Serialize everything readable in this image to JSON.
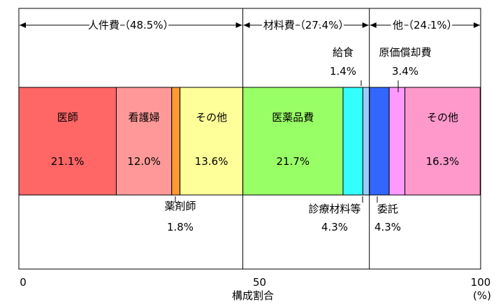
{
  "chart_data": {
    "type": "bar",
    "orientation": "horizontal-stacked",
    "xlabel": "構成割合",
    "x_unit": "(%)",
    "xlim": [
      0,
      100
    ],
    "x_ticks": [
      "0",
      "50",
      "100"
    ],
    "groups": [
      {
        "label": "人件費（48.5%）",
        "start": 0,
        "end": 48.5
      },
      {
        "label": "材料費（27.4%）",
        "start": 48.5,
        "end": 75.9
      },
      {
        "label": "他（24.1%）",
        "start": 75.9,
        "end": 100
      }
    ],
    "segments": [
      {
        "name": "医師",
        "value_label": "21.1%",
        "value": 21.1,
        "color": "#ff6666"
      },
      {
        "name": "看護婦",
        "value_label": "12.0%",
        "value": 12.0,
        "color": "#ff9999"
      },
      {
        "name": "薬剤師",
        "value_label": "1.8%",
        "value": 1.8,
        "color": "#ff9933"
      },
      {
        "name": "その他",
        "value_label": "13.6%",
        "value": 13.6,
        "color": "#ffff99"
      },
      {
        "name": "医薬品費",
        "value_label": "21.7%",
        "value": 21.7,
        "color": "#99ff66"
      },
      {
        "name": "診療材料等",
        "value_label": "4.3%",
        "value": 4.3,
        "color": "#33ffff"
      },
      {
        "name": "給食",
        "value_label": "1.4%",
        "value": 1.4,
        "color": "#99ccff"
      },
      {
        "name": "委託",
        "value_label": "4.3%",
        "value": 4.3,
        "color": "#3366ff"
      },
      {
        "name": "原価償却費",
        "value_label": "3.4%",
        "value": 3.4,
        "color": "#ff99ff"
      },
      {
        "name": "その他",
        "value_label": "16.3%",
        "value": 16.3,
        "color": "#ff99cc"
      }
    ]
  }
}
